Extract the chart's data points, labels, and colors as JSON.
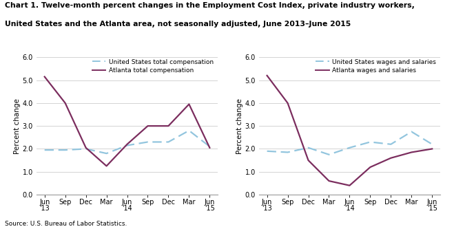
{
  "title_line1": "Chart 1. Twelve-month percent changes in the Employment Cost Index, private industry workers,",
  "title_line2": "United States and the Atlanta area, not seasonally adjusted, June 2013–June 2015",
  "source": "Source: U.S. Bureau of Labor Statistics.",
  "x_tick_labels": [
    "Jun\n'13",
    "Sep",
    "Dec",
    "Mar",
    "Jun\n'14",
    "Sep",
    "Dec",
    "Mar",
    "Jun\n'15"
  ],
  "ylabel": "Percent change",
  "ylim": [
    0.0,
    6.0
  ],
  "yticks": [
    0.0,
    1.0,
    2.0,
    3.0,
    4.0,
    5.0,
    6.0
  ],
  "ytick_labels": [
    "0.0",
    "1.0",
    "2.0",
    "3.0",
    "4.0",
    "5.0",
    "6.0"
  ],
  "chart1": {
    "us_label": "United States total compensation",
    "atlanta_label": "Atlanta total compensation",
    "us_color": "#92C5DE",
    "atlanta_color": "#7B2D5E",
    "us_values": [
      1.95,
      1.95,
      2.0,
      1.8,
      2.15,
      2.3,
      2.3,
      2.8,
      2.1
    ],
    "atlanta_values": [
      5.15,
      4.0,
      2.05,
      1.25,
      2.2,
      3.0,
      3.0,
      3.95,
      2.05
    ]
  },
  "chart2": {
    "us_label": "United States wages and salaries",
    "atlanta_label": "Atlanta wages and salaries",
    "us_color": "#92C5DE",
    "atlanta_color": "#7B2D5E",
    "us_values": [
      1.9,
      1.85,
      2.05,
      1.75,
      2.05,
      2.3,
      2.2,
      2.75,
      2.2
    ],
    "atlanta_values": [
      5.2,
      4.0,
      1.5,
      0.6,
      0.4,
      1.2,
      1.6,
      1.85,
      2.0
    ]
  }
}
